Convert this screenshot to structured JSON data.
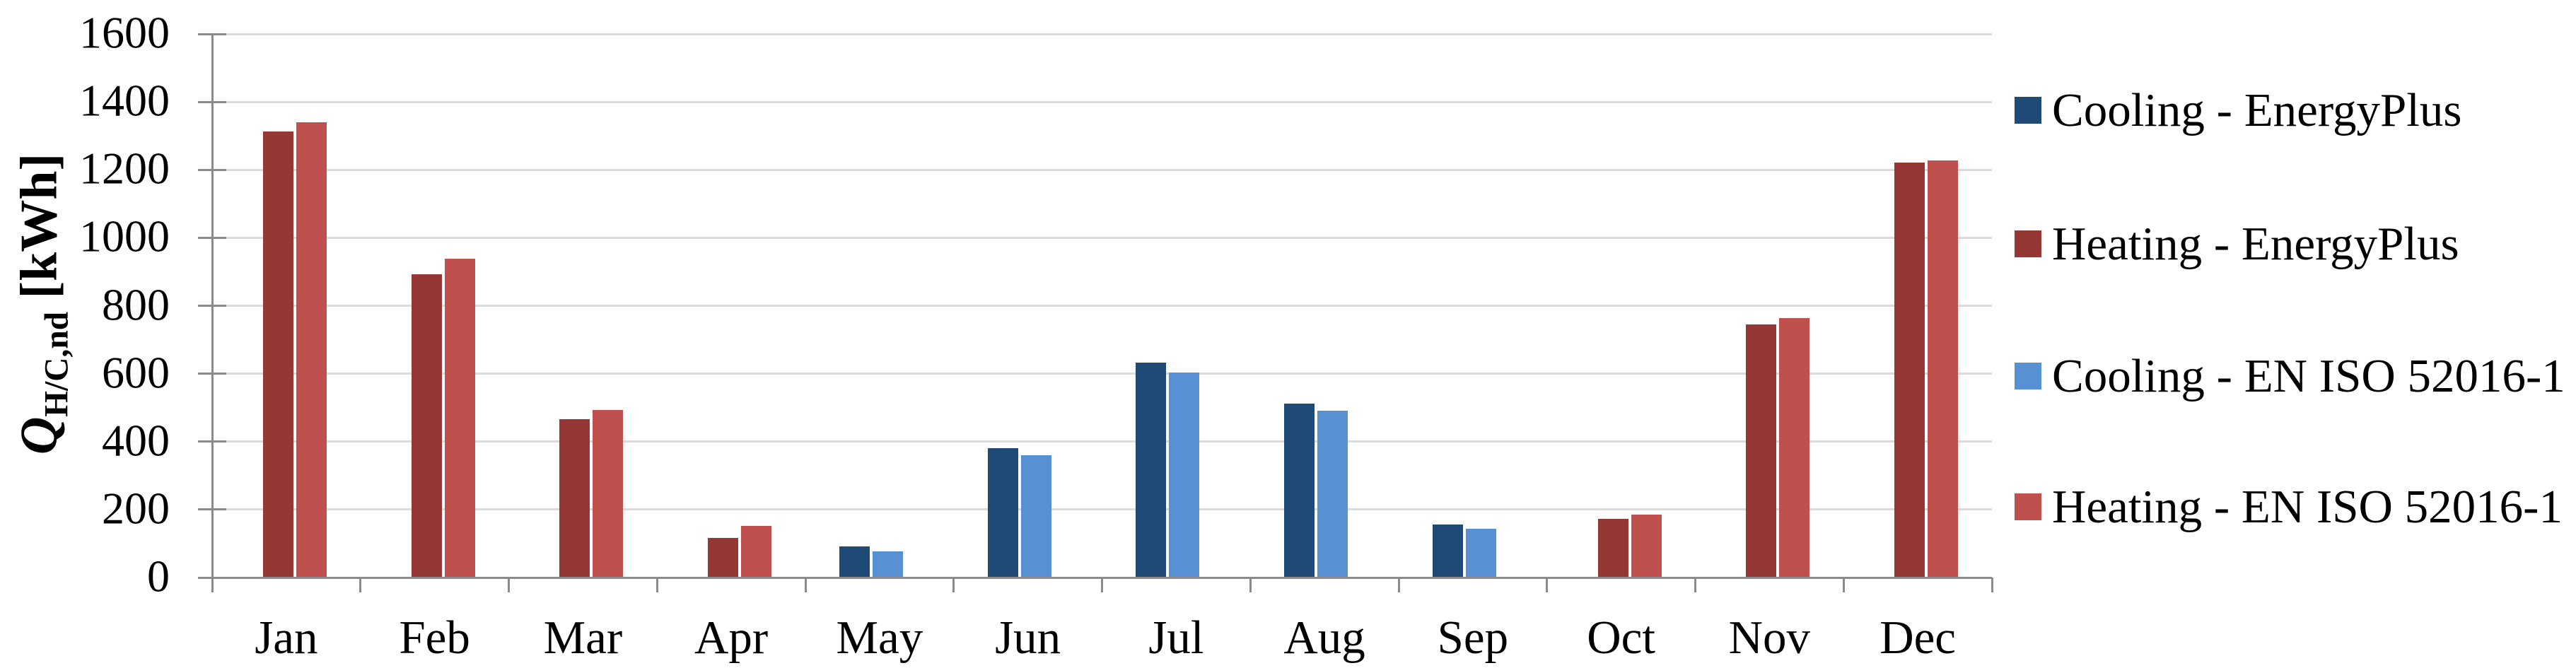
{
  "chart_data": {
    "type": "bar",
    "title": "",
    "xlabel": "",
    "ylabel": {
      "symbol": "Q",
      "subscript": "H/C,nd",
      "unit": " [kWh]"
    },
    "categories": [
      "Jan",
      "Feb",
      "Mar",
      "Apr",
      "May",
      "Jun",
      "Jul",
      "Aug",
      "Sep",
      "Oct",
      "Nov",
      "Dec"
    ],
    "series": [
      {
        "name": "Cooling - EnergyPlus",
        "color": "#204A76",
        "values": [
          0,
          0,
          0,
          0,
          90,
          378,
          631,
          510,
          153,
          0,
          0,
          0
        ]
      },
      {
        "name": "Heating - EnergyPlus",
        "color": "#953735",
        "values": [
          1310,
          891,
          465,
          115,
          0,
          0,
          0,
          0,
          0,
          171,
          742,
          1219
        ]
      },
      {
        "name": "Cooling - EN ISO 52016-1",
        "color": "#5890D4",
        "values": [
          0,
          0,
          0,
          0,
          74,
          358,
          601,
          488,
          142,
          0,
          0,
          0
        ]
      },
      {
        "name": "Heating - EN ISO 52016-1",
        "color": "#C0504D",
        "values": [
          1337,
          936,
          492,
          150,
          0,
          0,
          0,
          0,
          0,
          183,
          762,
          1225
        ]
      }
    ],
    "yticks": [
      0,
      200,
      400,
      600,
      800,
      1000,
      1200,
      1400,
      1600
    ],
    "ylim": [
      0,
      1600
    ],
    "grid": true,
    "legend_position": "right"
  },
  "style": {
    "background": "#FFFFFF",
    "grid_color": "#DBDBDB",
    "axis_color": "#8B8B8B",
    "text_color": "#000000"
  }
}
